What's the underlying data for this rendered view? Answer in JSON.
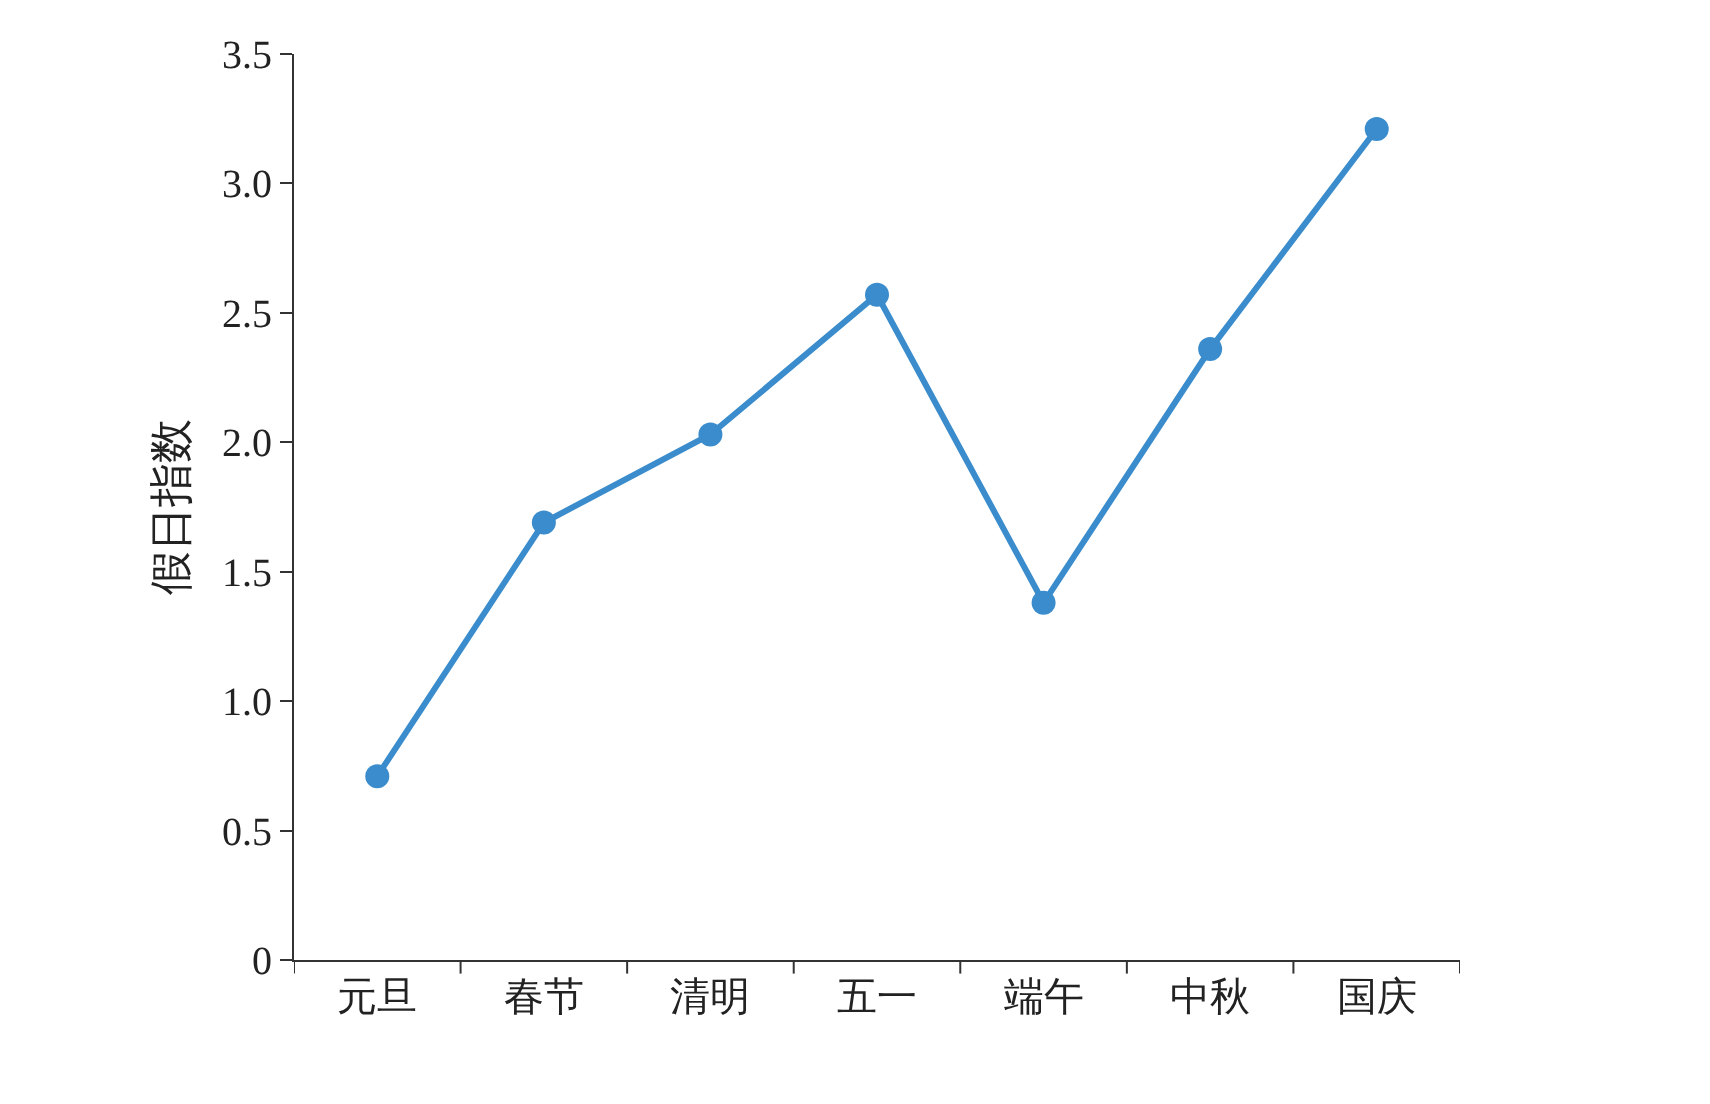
{
  "chart_data": {
    "type": "line",
    "ylabel": "假日指数",
    "categories": [
      "元旦",
      "春节",
      "清明",
      "五一",
      "端午",
      "中秋",
      "国庆"
    ],
    "series": [
      {
        "color": "#3a8ccc",
        "values": [
          0.71,
          1.69,
          2.03,
          2.57,
          1.38,
          2.36,
          3.21
        ]
      }
    ],
    "ylim": [
      0,
      3.5
    ],
    "yticks": [
      {
        "value": 0,
        "label": "0"
      },
      {
        "value": 0.5,
        "label": "0.5"
      },
      {
        "value": 1,
        "label": "1.0"
      },
      {
        "value": 1.5,
        "label": "1.5"
      },
      {
        "value": 2,
        "label": "2.0"
      },
      {
        "value": 2.5,
        "label": "2.5"
      },
      {
        "value": 3,
        "label": "3.0"
      },
      {
        "value": 3.5,
        "label": "3.5"
      }
    ],
    "grid": false,
    "marker": "circle",
    "line_style": "solid"
  }
}
